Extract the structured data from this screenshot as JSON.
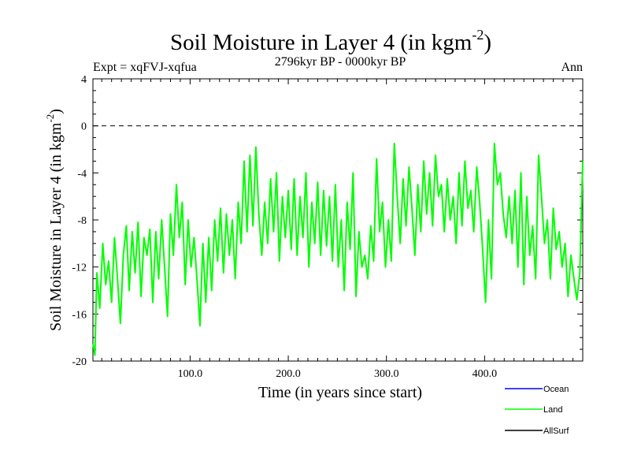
{
  "header": {
    "title_main": "Soil Moisture in Layer 4 (in kgm",
    "title_sup": "-2",
    "title_close": ")",
    "experiment": "Expt = xqFVJ-xqfua",
    "period": "2796kyr BP - 0000kyr BP",
    "season": "Ann"
  },
  "axes": {
    "ylabel_main": "Soil Moisture in Layer 4 (in kgm",
    "ylabel_sup": "-2",
    "ylabel_close": ")",
    "xlabel": "Time (in years since start)",
    "yticks": [
      "4",
      "0",
      "-4",
      "-8",
      "-12",
      "-16",
      "-20"
    ],
    "xticks": [
      "100.0",
      "200.0",
      "300.0",
      "400.0"
    ]
  },
  "legend": {
    "items": [
      {
        "label": "Ocean",
        "color": "#0000ff"
      },
      {
        "label": "Land",
        "color": "#00ff00"
      },
      {
        "label": "AllSurf",
        "color": "#000000"
      }
    ]
  },
  "chart_data": {
    "type": "line",
    "title": "Soil Moisture in Layer 4 (in kgm-2)",
    "xlabel": "Time (in years since start)",
    "ylabel": "Soil Moisture in Layer 4 (in kgm-2)",
    "xlim": [
      1,
      500
    ],
    "ylim": [
      -20,
      4
    ],
    "reference_line": 0,
    "series": [
      {
        "name": "Ocean",
        "color": "#0000ff",
        "x": [],
        "values": []
      },
      {
        "name": "AllSurf",
        "color": "#000000",
        "x": [],
        "values": []
      },
      {
        "name": "Land",
        "color": "#00ff00",
        "x": [
          1,
          3,
          5,
          8,
          11,
          14,
          17,
          20,
          23,
          26,
          29,
          32,
          35,
          38,
          41,
          44,
          47,
          50,
          53,
          56,
          59,
          62,
          65,
          68,
          71,
          74,
          77,
          80,
          83,
          86,
          89,
          92,
          95,
          98,
          101,
          104,
          107,
          110,
          113,
          116,
          119,
          122,
          125,
          128,
          131,
          134,
          137,
          140,
          143,
          146,
          149,
          152,
          155,
          158,
          161,
          164,
          167,
          170,
          173,
          176,
          179,
          182,
          185,
          188,
          191,
          194,
          197,
          200,
          203,
          206,
          209,
          212,
          215,
          218,
          221,
          224,
          227,
          230,
          233,
          236,
          239,
          242,
          245,
          248,
          251,
          254,
          257,
          260,
          263,
          266,
          269,
          272,
          275,
          278,
          281,
          284,
          287,
          290,
          293,
          296,
          299,
          302,
          305,
          308,
          311,
          314,
          317,
          320,
          323,
          326,
          329,
          332,
          335,
          338,
          341,
          344,
          347,
          350,
          353,
          356,
          359,
          362,
          365,
          368,
          371,
          374,
          377,
          380,
          383,
          386,
          389,
          392,
          395,
          398,
          401,
          404,
          407,
          410,
          413,
          416,
          419,
          422,
          425,
          428,
          431,
          434,
          437,
          440,
          443,
          446,
          449,
          452,
          455,
          458,
          461,
          464,
          467,
          470,
          473,
          476,
          479,
          482,
          485,
          488,
          491,
          494,
          497,
          500
        ],
        "values": [
          -18.5,
          -19.5,
          -12.5,
          -15.5,
          -10.0,
          -13.5,
          -11.5,
          -15.0,
          -9.5,
          -13.0,
          -16.8,
          -11.0,
          -8.5,
          -14.0,
          -9.0,
          -12.5,
          -8.2,
          -14.5,
          -9.5,
          -11.0,
          -8.8,
          -15.0,
          -9.0,
          -13.0,
          -8.0,
          -12.0,
          -16.2,
          -7.5,
          -11.0,
          -5.0,
          -9.5,
          -6.5,
          -13.5,
          -8.0,
          -12.0,
          -9.5,
          -13.0,
          -17.0,
          -10.0,
          -15.0,
          -9.5,
          -14.0,
          -8.0,
          -11.5,
          -7.0,
          -12.5,
          -7.5,
          -11.0,
          -8.0,
          -13.0,
          -6.5,
          -10.0,
          -3.0,
          -9.0,
          -2.5,
          -8.5,
          -1.8,
          -7.5,
          -11.0,
          -6.5,
          -10.0,
          -4.5,
          -9.0,
          -4.0,
          -11.5,
          -6.0,
          -9.5,
          -5.5,
          -10.5,
          -4.5,
          -11.0,
          -6.0,
          -9.5,
          -4.0,
          -12.0,
          -6.5,
          -10.0,
          -4.8,
          -11.0,
          -5.5,
          -10.2,
          -6.0,
          -11.5,
          -5.0,
          -12.0,
          -8.0,
          -14.0,
          -6.5,
          -10.5,
          -4.0,
          -14.5,
          -9.0,
          -12.0,
          -11.0,
          -13.0,
          -8.5,
          -11.5,
          -2.8,
          -9.0,
          -6.5,
          -12.0,
          -8.0,
          -11.5,
          -1.5,
          -6.0,
          -10.0,
          -4.5,
          -8.5,
          -3.5,
          -7.0,
          -11.0,
          -5.0,
          -9.0,
          -3.0,
          -7.5,
          -4.0,
          -8.5,
          -2.5,
          -6.0,
          -5.0,
          -9.0,
          -4.5,
          -8.0,
          -6.0,
          -10.0,
          -4.0,
          -8.5,
          -3.0,
          -7.0,
          -5.5,
          -9.0,
          -3.5,
          -6.5,
          -10.5,
          -15.0,
          -8.0,
          -13.0,
          -1.5,
          -5.0,
          -4.0,
          -7.5,
          -9.5,
          -6.0,
          -10.0,
          -5.5,
          -12.0,
          -4.0,
          -13.5,
          -6.0,
          -11.0,
          -8.5,
          -13.0,
          -2.5,
          -6.0,
          -10.0,
          -8.0,
          -13.0,
          -7.0,
          -10.5,
          -9.0,
          -12.0,
          -10.0,
          -14.5,
          -11.0,
          -13.0,
          -14.8,
          -12.5,
          -3.0
        ]
      }
    ]
  }
}
